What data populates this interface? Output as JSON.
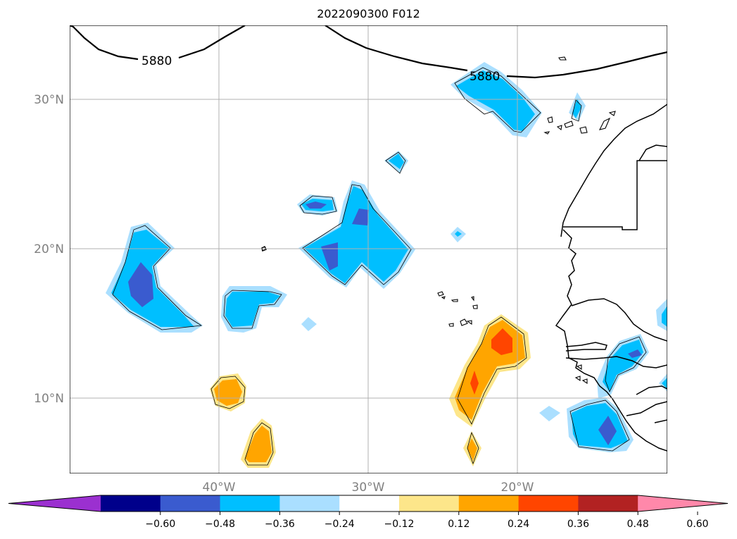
{
  "title": "2022090300 F012",
  "lat_labels": [
    "30°N",
    "20°N",
    "10°N"
  ],
  "lon_labels": [
    "40°W",
    "30°W",
    "20°W"
  ],
  "contour": {
    "level_labels": [
      "5880",
      "5880"
    ],
    "color": "#000000"
  },
  "colorbar": {
    "tick_labels": [
      "−0.60",
      "−0.48",
      "−0.36",
      "−0.24",
      "−0.12",
      "0.12",
      "0.24",
      "0.36",
      "0.48",
      "0.60"
    ],
    "colors": [
      "#9b30d0",
      "#00008b",
      "#3a5bcf",
      "#00bfff",
      "#aadfff",
      "#ffffff",
      "#fde68a",
      "#ffa500",
      "#ff4500",
      "#b22222",
      "#ff88aa"
    ]
  },
  "colors": {
    "strong_negative": "#3a5bcf",
    "negative": "#00bfff",
    "weak_negative": "#aadfff",
    "weak_positive": "#fde68a",
    "positive": "#ffa500",
    "strong_positive": "#ff4500",
    "gridline": "#b0b0b0",
    "coastline": "#000000"
  }
}
